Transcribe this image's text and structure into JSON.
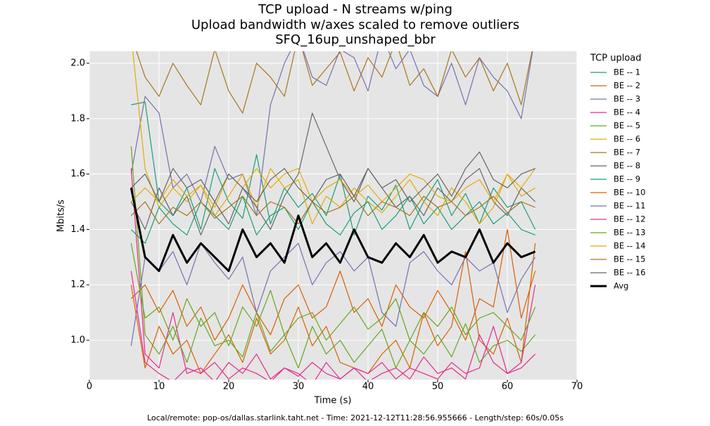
{
  "chart_data": {
    "type": "line",
    "title": [
      "TCP upload - N streams w/ping",
      "Upload bandwidth w/axes scaled to remove outliers",
      "SFQ_16up_unshaped_bbr"
    ],
    "xlabel": "Time (s)",
    "ylabel": "Mbits/s",
    "legend_title": "TCP upload",
    "footer": "Local/remote: pop-os/dallas.starlink.taht.net - Time: 2021-12-12T11:28:56.955666 - Length/step: 60s/0.05s",
    "grid": true,
    "xlim": [
      0,
      70
    ],
    "ylim": [
      0.858,
      2.043
    ],
    "xticks": [
      0,
      10,
      20,
      30,
      40,
      50,
      60,
      70
    ],
    "yticks": [
      {
        "value": 1,
        "label": "1.0"
      },
      1.2,
      1.4,
      1.6,
      1.8,
      {
        "value": 2,
        "label": "2.0"
      }
    ],
    "x": [
      6,
      8,
      10,
      12,
      14,
      16,
      18,
      20,
      22,
      24,
      26,
      28,
      30,
      32,
      34,
      36,
      38,
      40,
      42,
      44,
      46,
      48,
      50,
      52,
      54,
      56,
      58,
      60,
      62,
      64
    ],
    "series": [
      {
        "name": "BE -- 1",
        "color": "#1b9e77",
        "values": [
          1.85,
          1.86,
          1.5,
          1.45,
          1.55,
          1.4,
          1.62,
          1.5,
          1.44,
          1.67,
          1.42,
          1.55,
          1.48,
          1.53,
          1.45,
          1.6,
          1.38,
          1.52,
          1.47,
          1.56,
          1.4,
          1.5,
          1.58,
          1.45,
          1.53,
          1.42,
          1.55,
          1.48,
          1.5,
          1.4
        ]
      },
      {
        "name": "BE -- 2",
        "color": "#d95f02",
        "values": [
          1.2,
          0.9,
          1.05,
          0.95,
          1.0,
          0.88,
          0.95,
          1.02,
          0.92,
          1.08,
          0.95,
          1.0,
          1.12,
          0.98,
          1.05,
          0.92,
          0.9,
          0.88,
          0.95,
          1.0,
          0.9,
          1.1,
          0.98,
          1.05,
          1.32,
          1.0,
          0.95,
          1.08,
          0.92,
          1.35
        ]
      },
      {
        "name": "BE -- 3",
        "color": "#7570b3",
        "values": [
          1.6,
          1.88,
          1.82,
          1.55,
          1.6,
          1.5,
          1.7,
          1.58,
          1.6,
          1.45,
          1.85,
          2.0,
          2.1,
          1.95,
          1.92,
          2.05,
          2.02,
          1.9,
          2.1,
          1.98,
          2.05,
          1.92,
          1.88,
          2.0,
          1.85,
          2.02,
          1.95,
          1.9,
          1.8,
          2.1
        ]
      },
      {
        "name": "BE -- 4",
        "color": "#e7298a",
        "values": [
          1.62,
          0.95,
          0.9,
          1.1,
          0.88,
          0.9,
          0.85,
          0.92,
          0.88,
          0.95,
          0.86,
          0.9,
          0.88,
          0.84,
          0.92,
          0.86,
          0.9,
          0.85,
          0.88,
          0.9,
          0.86,
          0.94,
          0.88,
          0.9,
          0.86,
          1.02,
          0.92,
          0.88,
          0.9,
          0.95
        ]
      },
      {
        "name": "BE -- 5",
        "color": "#66a61e",
        "values": [
          1.7,
          1.02,
          0.95,
          1.05,
          0.92,
          1.08,
          0.98,
          1.0,
          0.94,
          1.1,
          0.96,
          1.02,
          0.9,
          1.05,
          0.95,
          1.0,
          0.92,
          0.98,
          1.04,
          0.9,
          1.0,
          0.95,
          1.02,
          0.94,
          1.06,
          0.92,
          0.98,
          1.0,
          0.96,
          1.02
        ]
      },
      {
        "name": "BE -- 6",
        "color": "#e6ab02",
        "values": [
          2.1,
          1.62,
          1.48,
          1.55,
          1.5,
          1.56,
          1.45,
          1.52,
          1.6,
          1.48,
          1.62,
          1.55,
          1.58,
          1.42,
          1.52,
          1.48,
          1.55,
          1.5,
          1.46,
          1.52,
          1.58,
          1.5,
          1.45,
          1.55,
          1.5,
          1.42,
          1.48,
          1.6,
          1.52,
          1.55
        ]
      },
      {
        "name": "BE -- 7",
        "color": "#a6761d",
        "values": [
          2.1,
          1.95,
          1.88,
          2.0,
          1.92,
          1.85,
          2.05,
          1.9,
          1.82,
          2.0,
          1.95,
          1.88,
          2.1,
          1.92,
          1.98,
          2.04,
          1.9,
          2.02,
          1.95,
          2.08,
          1.92,
          1.98,
          1.88,
          2.05,
          1.95,
          2.02,
          1.9,
          2.0,
          1.85,
          2.1
        ]
      },
      {
        "name": "BE -- 8",
        "color": "#666666",
        "values": [
          1.5,
          1.4,
          1.55,
          1.45,
          1.52,
          1.38,
          1.5,
          1.42,
          1.55,
          1.48,
          1.4,
          1.52,
          1.6,
          1.82,
          1.7,
          1.58,
          1.5,
          1.62,
          1.55,
          1.48,
          1.52,
          1.45,
          1.55,
          1.5,
          1.58,
          1.62,
          1.5,
          1.45,
          1.55,
          1.5
        ]
      },
      {
        "name": "BE -- 9",
        "color": "#1b9e77",
        "values": [
          1.4,
          1.35,
          1.48,
          1.42,
          1.38,
          1.5,
          1.45,
          1.4,
          1.52,
          1.38,
          1.45,
          1.48,
          1.4,
          1.5,
          1.42,
          1.38,
          1.46,
          1.5,
          1.4,
          1.45,
          1.52,
          1.42,
          1.48,
          1.4,
          1.45,
          1.5,
          1.42,
          1.46,
          1.4,
          1.38
        ]
      },
      {
        "name": "BE -- 10",
        "color": "#d95f02",
        "values": [
          1.15,
          1.2,
          1.1,
          1.18,
          1.05,
          1.12,
          1.0,
          1.08,
          1.2,
          1.1,
          1.02,
          1.15,
          1.2,
          1.08,
          1.12,
          1.25,
          1.1,
          1.15,
          1.05,
          1.2,
          1.12,
          1.08,
          1.18,
          1.1,
          1.0,
          1.15,
          1.12,
          1.4,
          1.08,
          1.25
        ]
      },
      {
        "name": "BE -- 11",
        "color": "#7570b3",
        "values": [
          0.98,
          1.3,
          1.25,
          1.32,
          1.2,
          1.35,
          1.28,
          1.22,
          1.3,
          1.1,
          1.25,
          1.3,
          1.35,
          1.2,
          1.28,
          1.32,
          1.25,
          1.3,
          1.1,
          1.05,
          1.28,
          1.32,
          1.25,
          1.2,
          1.3,
          1.25,
          1.28,
          1.1,
          1.22,
          1.3
        ]
      },
      {
        "name": "BE -- 12",
        "color": "#e7298a",
        "values": [
          1.25,
          0.92,
          0.88,
          0.85,
          0.9,
          0.88,
          0.92,
          0.86,
          0.9,
          0.88,
          0.85,
          0.9,
          0.87,
          0.92,
          0.88,
          0.86,
          0.9,
          0.88,
          0.92,
          0.86,
          0.9,
          0.88,
          0.86,
          0.92,
          0.88,
          0.9,
          1.05,
          0.88,
          0.92,
          1.2
        ]
      },
      {
        "name": "BE -- 13",
        "color": "#66a61e",
        "values": [
          1.35,
          1.08,
          1.12,
          1.0,
          1.15,
          1.05,
          1.1,
          0.98,
          1.12,
          1.05,
          1.18,
          1.02,
          1.08,
          1.1,
          1.0,
          1.06,
          1.12,
          1.04,
          1.08,
          1.15,
          1.0,
          1.1,
          1.05,
          1.12,
          1.02,
          1.08,
          1.1,
          1.05,
          1.0,
          1.12
        ]
      },
      {
        "name": "BE -- 14",
        "color": "#e6ab02",
        "values": [
          1.5,
          1.55,
          1.5,
          1.58,
          1.52,
          1.56,
          1.48,
          1.6,
          1.55,
          1.62,
          1.55,
          1.6,
          1.62,
          1.5,
          1.55,
          1.58,
          1.52,
          1.56,
          1.5,
          1.55,
          1.6,
          1.58,
          1.52,
          1.5,
          1.55,
          1.58,
          1.5,
          1.6,
          1.55,
          1.62
        ]
      },
      {
        "name": "BE -- 15",
        "color": "#a6761d",
        "values": [
          1.45,
          1.5,
          1.42,
          1.48,
          1.45,
          1.5,
          1.44,
          1.48,
          1.52,
          1.45,
          1.5,
          1.48,
          1.42,
          1.5,
          1.46,
          1.48,
          1.52,
          1.45,
          1.5,
          1.48,
          1.45,
          1.52,
          1.48,
          1.5,
          1.45,
          1.48,
          1.52,
          1.46,
          1.5,
          1.48
        ]
      },
      {
        "name": "BE -- 16",
        "color": "#666666",
        "values": [
          1.55,
          1.6,
          1.5,
          1.62,
          1.55,
          1.58,
          1.5,
          1.6,
          1.55,
          1.5,
          1.58,
          1.62,
          1.55,
          1.5,
          1.58,
          1.6,
          1.52,
          1.62,
          1.55,
          1.58,
          1.5,
          1.55,
          1.6,
          1.52,
          1.62,
          1.68,
          1.58,
          1.55,
          1.6,
          1.62
        ]
      },
      {
        "name": "Avg",
        "color": "#000000",
        "width": 3,
        "values": [
          1.55,
          1.3,
          1.25,
          1.38,
          1.28,
          1.35,
          1.3,
          1.25,
          1.4,
          1.3,
          1.35,
          1.28,
          1.45,
          1.3,
          1.35,
          1.28,
          1.4,
          1.3,
          1.28,
          1.35,
          1.3,
          1.38,
          1.28,
          1.32,
          1.3,
          1.4,
          1.28,
          1.35,
          1.3,
          1.32
        ]
      }
    ]
  }
}
